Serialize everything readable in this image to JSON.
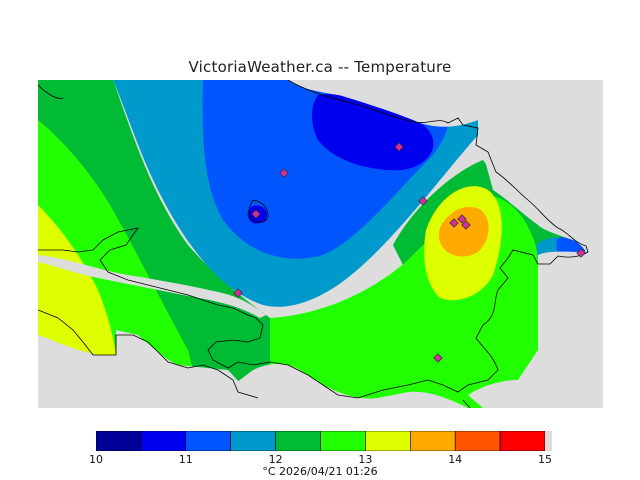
{
  "title": "VictoriaWeather.ca -- Temperature",
  "legend": {
    "ticks": [
      "10",
      "11",
      "12",
      "13",
      "14",
      "15"
    ],
    "bins": [
      {
        "from": 10,
        "to": 10.5,
        "color": "#000099"
      },
      {
        "from": 10.5,
        "to": 11,
        "color": "#0000ee"
      },
      {
        "from": 11,
        "to": 11.5,
        "color": "#0055ff"
      },
      {
        "from": 11.5,
        "to": 12,
        "color": "#0099cc"
      },
      {
        "from": 12,
        "to": 12.5,
        "color": "#00bb33"
      },
      {
        "from": 12.5,
        "to": 13,
        "color": "#22ff00"
      },
      {
        "from": 13,
        "to": 13.5,
        "color": "#ddff00"
      },
      {
        "from": 13.5,
        "to": 14,
        "color": "#ffaa00"
      },
      {
        "from": 14,
        "to": 14.5,
        "color": "#ff5500"
      },
      {
        "from": 14.5,
        "to": 15,
        "color": "#ff0000"
      }
    ]
  },
  "footer": "°C  2026/04/21 01:26",
  "colors": {
    "land_background": "#dddddd",
    "station_marker": "#cc3399",
    "coastline": "#000000"
  }
}
